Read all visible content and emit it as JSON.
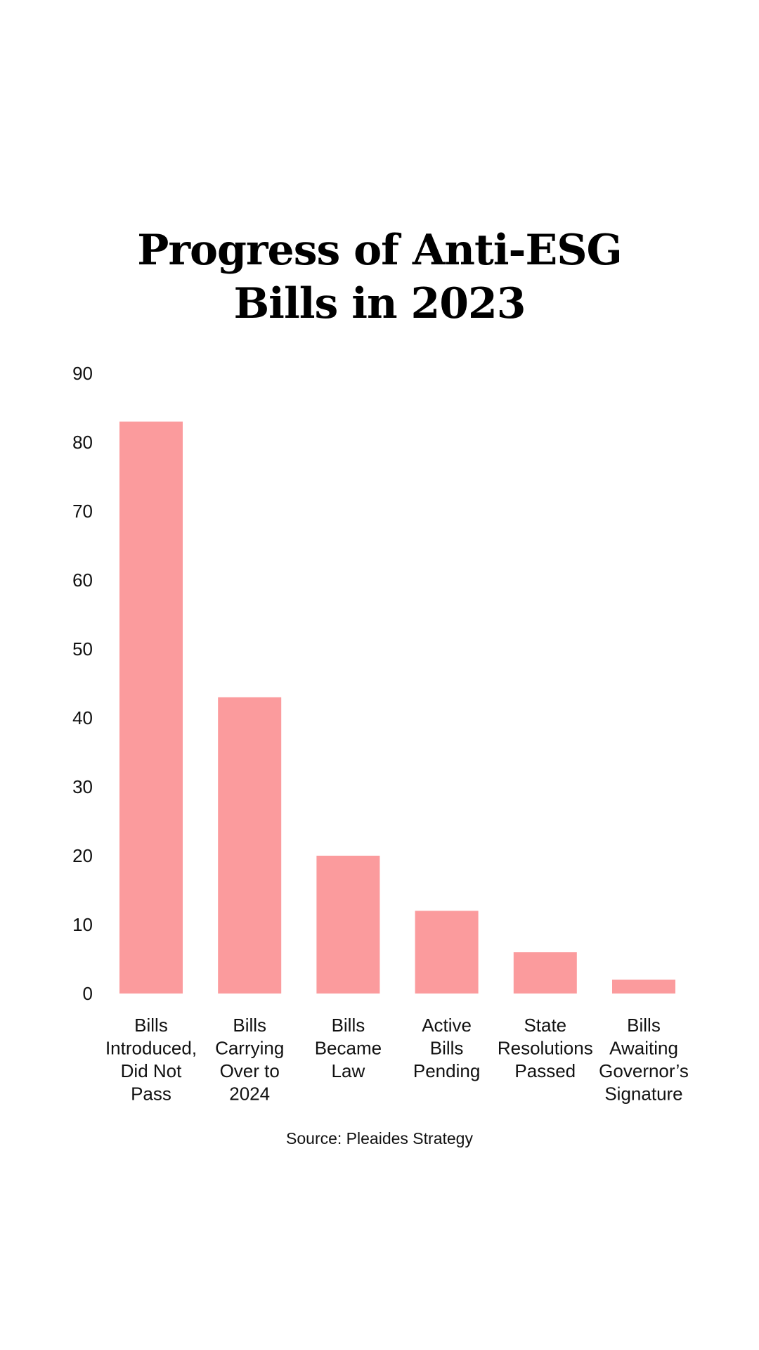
{
  "chart_data": {
    "type": "bar",
    "title_lines": [
      "Progress of Anti-ESG",
      "Bills in 2023"
    ],
    "categories": [
      [
        "Bills",
        "Introduced,",
        "Did Not",
        "Pass"
      ],
      [
        "Bills",
        "Carrying",
        "Over to",
        "2024"
      ],
      [
        "Bills",
        "Became",
        "Law"
      ],
      [
        "Active",
        "Bills",
        "Pending"
      ],
      [
        "State",
        "Resolutions",
        "Passed"
      ],
      [
        "Bills",
        "Awaiting",
        "Governor’s",
        "Signature"
      ]
    ],
    "values": [
      83,
      43,
      20,
      12,
      6,
      2
    ],
    "yticks": [
      "0",
      "10",
      "20",
      "30",
      "40",
      "50",
      "60",
      "70",
      "80",
      "90"
    ],
    "ylim": [
      0,
      90
    ],
    "grid": false,
    "legend": "none",
    "bar_color": "#fb9b9d"
  },
  "source": "Source: Pleaides Strategy"
}
